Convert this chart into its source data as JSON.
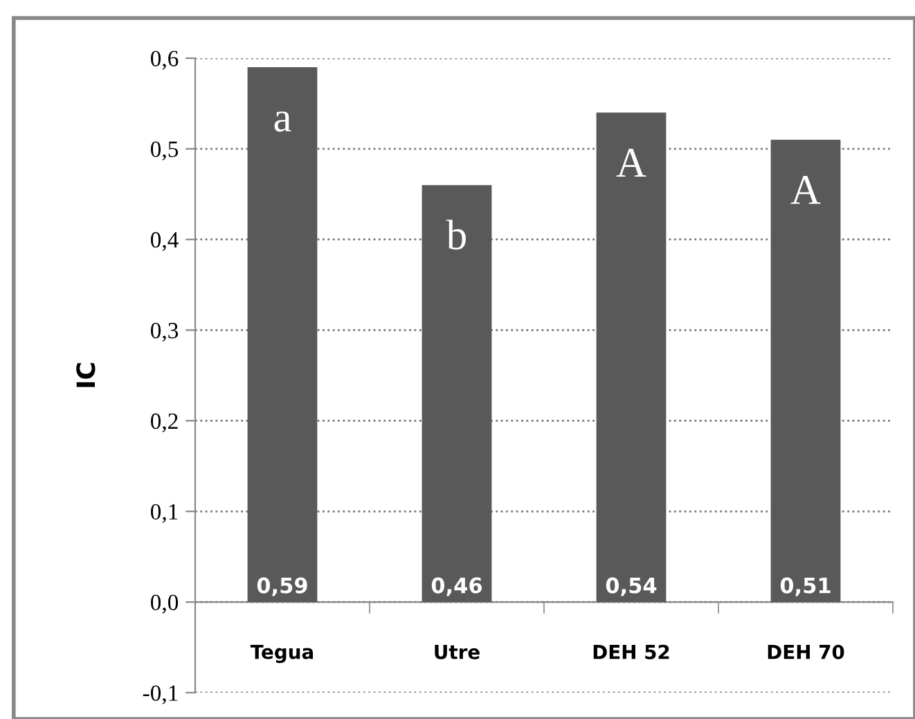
{
  "chart_data": {
    "type": "bar",
    "ylabel": "IC",
    "categories": [
      "Tegua",
      "Utre",
      "DEH 52",
      "DEH 70"
    ],
    "values": [
      0.59,
      0.46,
      0.54,
      0.51
    ],
    "color": "#595959",
    "value_labels": [
      "0,59",
      "0,46",
      "0,54",
      "0,51"
    ],
    "ylim": [
      -0.1,
      0.6
    ],
    "yticks": [
      {
        "value": -0.1,
        "label": "-0,1"
      },
      {
        "value": 0.0,
        "label": "0,0"
      },
      {
        "value": 0.1,
        "label": "0,1"
      },
      {
        "value": 0.2,
        "label": "0,2"
      },
      {
        "value": 0.3,
        "label": "0,3"
      },
      {
        "value": 0.4,
        "label": "0,4"
      },
      {
        "value": 0.5,
        "label": "0,5"
      },
      {
        "value": 0.6,
        "label": "0,6"
      }
    ],
    "grid": "y",
    "annotations": [
      "a",
      "b",
      "A",
      "A"
    ]
  }
}
